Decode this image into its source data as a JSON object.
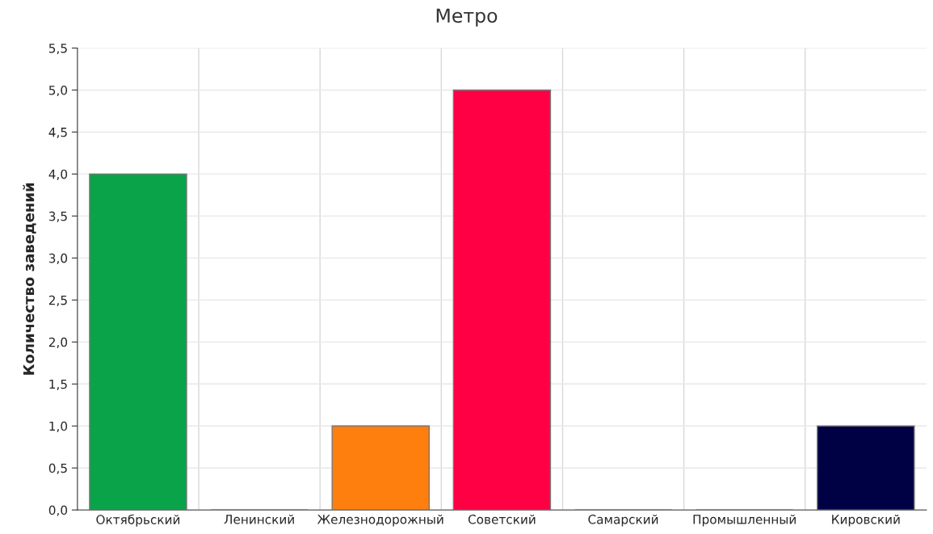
{
  "chart_data": {
    "type": "bar",
    "title": "Метро",
    "ylabel": "Количество заведений",
    "categories": [
      "Октябрьский",
      "Ленинский",
      "Железнодорожный",
      "Советский",
      "Самарский",
      "Промышленный",
      "Кировский"
    ],
    "values": [
      4,
      0,
      1,
      5,
      0,
      0,
      1
    ],
    "colors": [
      "#0aa34a",
      "#777777",
      "#ff7f0e",
      "#ff0044",
      "#777777",
      "#777777",
      "#000044"
    ],
    "ylim": [
      0,
      5.5
    ],
    "yticks": [
      {
        "value": 0,
        "label": "0,0"
      },
      {
        "value": 0.5,
        "label": "0,5"
      },
      {
        "value": 1,
        "label": "1,0"
      },
      {
        "value": 1.5,
        "label": "1,5"
      },
      {
        "value": 2,
        "label": "2,0"
      },
      {
        "value": 2.5,
        "label": "2,5"
      },
      {
        "value": 3,
        "label": "3,0"
      },
      {
        "value": 3.5,
        "label": "3,5"
      },
      {
        "value": 4,
        "label": "4,0"
      },
      {
        "value": 4.5,
        "label": "4,5"
      },
      {
        "value": 5,
        "label": "5,0"
      },
      {
        "value": 5.5,
        "label": "5,5"
      }
    ],
    "grid": true
  }
}
